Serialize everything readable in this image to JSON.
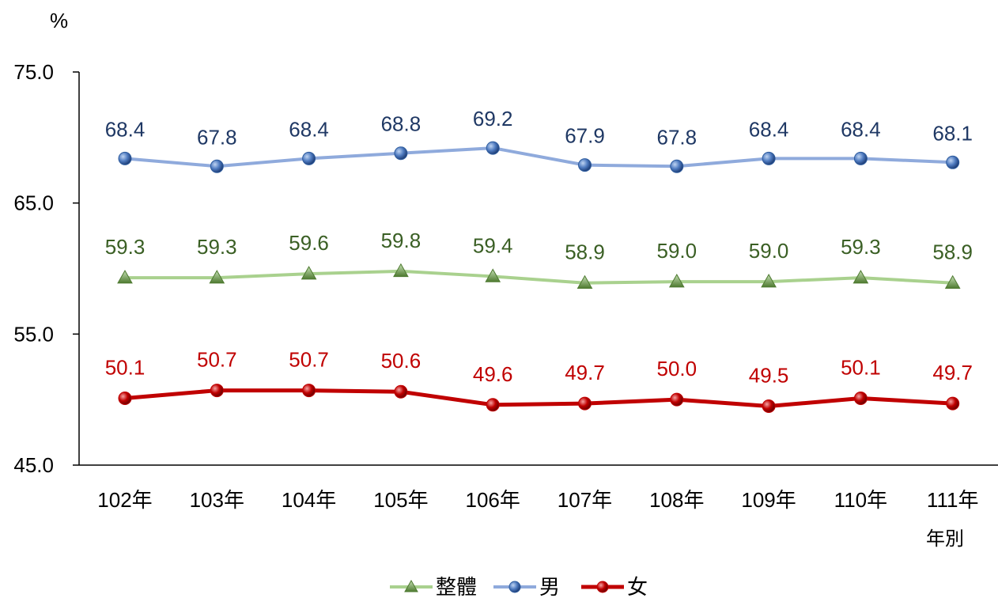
{
  "chart_data": {
    "type": "line",
    "title": "",
    "ylabel": "%",
    "xlabel": "年別",
    "ylim": [
      45.0,
      75.0
    ],
    "yticks": [
      "45.0",
      "55.0",
      "65.0",
      "75.0"
    ],
    "categories": [
      "102年",
      "103年",
      "104年",
      "105年",
      "106年",
      "107年",
      "108年",
      "109年",
      "110年",
      "111年"
    ],
    "grid": false,
    "legend_position": "bottom",
    "series": [
      {
        "name": "整體",
        "marker": "triangle",
        "line_color": "#A9D18E",
        "marker_color": "#70AD47",
        "label_color": "#3A5F24",
        "values": [
          59.3,
          59.3,
          59.6,
          59.8,
          59.4,
          58.9,
          59.0,
          59.0,
          59.3,
          58.9
        ],
        "labels": [
          "59.3",
          "59.3",
          "59.6",
          "59.8",
          "59.4",
          "58.9",
          "59.0",
          "59.0",
          "59.3",
          "58.9"
        ]
      },
      {
        "name": "男",
        "marker": "circle",
        "line_color": "#8FAADC",
        "marker_color": "#2E5C9E",
        "label_color": "#1F3864",
        "values": [
          68.4,
          67.8,
          68.4,
          68.8,
          69.2,
          67.9,
          67.8,
          68.4,
          68.4,
          68.1
        ],
        "labels": [
          "68.4",
          "67.8",
          "68.4",
          "68.8",
          "69.2",
          "67.9",
          "67.8",
          "68.4",
          "68.4",
          "68.1"
        ]
      },
      {
        "name": "女",
        "marker": "circle",
        "line_color": "#C00000",
        "marker_color": "#C00000",
        "label_color": "#C00000",
        "values": [
          50.1,
          50.7,
          50.7,
          50.6,
          49.6,
          49.7,
          50.0,
          49.5,
          50.1,
          49.7
        ],
        "labels": [
          "50.1",
          "50.7",
          "50.7",
          "50.6",
          "49.6",
          "49.7",
          "50.0",
          "49.5",
          "50.1",
          "49.7"
        ]
      }
    ]
  }
}
